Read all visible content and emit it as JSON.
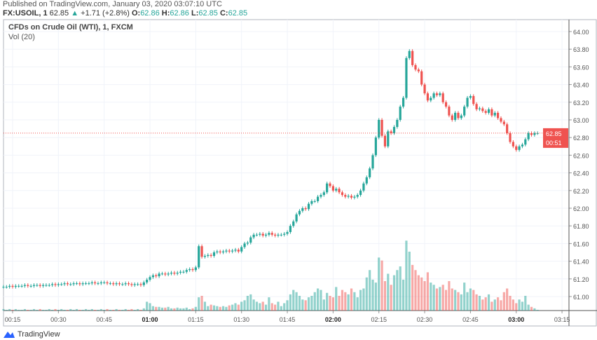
{
  "header": {
    "published": "Published on TradingView.com, January 03, 2020 03:07:10 UTC",
    "symbol": "FX:USOIL, 1",
    "last": "62.85",
    "change": "+1.71 (+2.8%)",
    "o_label": "O:",
    "o": "62.86",
    "h_label": "H:",
    "h": "62.86",
    "l_label": "L:",
    "l": "62.85",
    "c_label": "C:",
    "c": "62.85"
  },
  "legend": {
    "title": "CFDs on Crude Oil (WTI), 1, FXCM",
    "volume": "Vol (20)"
  },
  "price_label": {
    "price": "62.85",
    "countdown": "00:51"
  },
  "footer": {
    "brand": "TradingView"
  },
  "colors": {
    "up": "#26a69a",
    "down": "#ef5350",
    "grid": "#f0f3fa"
  },
  "chart_data": {
    "type": "candlestick",
    "interval": "1 minute",
    "start_time": "00:12",
    "y_ticks": [
      "61.00",
      "61.20",
      "61.40",
      "61.60",
      "61.80",
      "62.00",
      "62.20",
      "62.40",
      "62.60",
      "62.80",
      "63.00",
      "63.20",
      "63.40",
      "63.60",
      "63.80",
      "64.00"
    ],
    "x_ticks": [
      {
        "label": "00:15",
        "bold": false
      },
      {
        "label": "00:30",
        "bold": false
      },
      {
        "label": "00:45",
        "bold": false
      },
      {
        "label": "01:00",
        "bold": true
      },
      {
        "label": "01:15",
        "bold": false
      },
      {
        "label": "01:30",
        "bold": false
      },
      {
        "label": "01:45",
        "bold": false
      },
      {
        "label": "02:00",
        "bold": true
      },
      {
        "label": "02:15",
        "bold": false
      },
      {
        "label": "02:30",
        "bold": false
      },
      {
        "label": "02:45",
        "bold": false
      },
      {
        "label": "03:00",
        "bold": true
      },
      {
        "label": "03:15",
        "bold": false
      }
    ],
    "ylim": [
      60.87,
      64.13
    ],
    "first_open": 61.11,
    "closes": [
      61.11,
      61.11,
      61.12,
      61.11,
      61.12,
      61.12,
      61.12,
      61.13,
      61.12,
      61.12,
      61.13,
      61.13,
      61.12,
      61.13,
      61.13,
      61.13,
      61.14,
      61.13,
      61.14,
      61.14,
      61.15,
      61.14,
      61.14,
      61.15,
      61.15,
      61.14,
      61.15,
      61.15,
      61.15,
      61.16,
      61.15,
      61.15,
      61.16,
      61.16,
      61.15,
      61.15,
      61.14,
      61.15,
      61.14,
      61.14,
      61.15,
      61.14,
      61.13,
      61.14,
      61.14,
      61.13,
      61.16,
      61.19,
      61.22,
      61.24,
      61.23,
      61.26,
      61.26,
      61.25,
      61.26,
      61.27,
      61.26,
      61.27,
      61.28,
      61.28,
      61.3,
      61.31,
      61.3,
      61.33,
      61.57,
      61.45,
      61.46,
      61.47,
      61.46,
      61.5,
      61.51,
      61.5,
      61.51,
      61.52,
      61.51,
      61.52,
      61.53,
      61.51,
      61.56,
      61.6,
      61.61,
      61.67,
      61.7,
      61.7,
      61.71,
      61.69,
      61.7,
      61.72,
      61.7,
      61.69,
      61.7,
      61.7,
      61.71,
      61.73,
      61.8,
      61.85,
      61.93,
      61.97,
      62.0,
      61.99,
      62.05,
      62.08,
      62.08,
      62.13,
      62.15,
      62.18,
      62.28,
      62.25,
      62.2,
      62.22,
      62.18,
      62.15,
      62.13,
      62.14,
      62.12,
      62.13,
      62.15,
      62.2,
      62.28,
      62.35,
      62.45,
      62.6,
      62.8,
      63.0,
      62.82,
      62.7,
      62.87,
      62.85,
      62.92,
      63.0,
      63.15,
      63.25,
      63.7,
      63.78,
      63.62,
      63.57,
      63.55,
      63.4,
      63.3,
      63.22,
      63.25,
      63.3,
      63.28,
      63.3,
      63.2,
      63.15,
      63.05,
      63.0,
      63.08,
      63.02,
      63.05,
      63.15,
      63.25,
      63.27,
      63.18,
      63.12,
      63.13,
      63.1,
      63.08,
      63.12,
      63.05,
      63.08,
      63.02,
      62.98,
      62.95,
      62.85,
      62.75,
      62.7,
      62.66,
      62.7,
      62.72,
      62.78,
      62.85,
      62.83,
      62.85,
      62.85
    ],
    "volumes": [
      2,
      1,
      2,
      1,
      2,
      1,
      1,
      2,
      1,
      1,
      2,
      1,
      2,
      1,
      1,
      2,
      1,
      2,
      1,
      2,
      1,
      1,
      2,
      1,
      2,
      1,
      1,
      2,
      1,
      2,
      1,
      1,
      2,
      1,
      2,
      1,
      1,
      2,
      1,
      1,
      2,
      1,
      2,
      1,
      2,
      1,
      3,
      12,
      10,
      6,
      5,
      5,
      4,
      4,
      5,
      3,
      3,
      4,
      3,
      3,
      4,
      2,
      3,
      5,
      18,
      20,
      12,
      6,
      8,
      7,
      6,
      5,
      6,
      5,
      7,
      8,
      10,
      8,
      12,
      14,
      20,
      22,
      15,
      12,
      10,
      12,
      8,
      18,
      10,
      8,
      12,
      6,
      10,
      14,
      22,
      28,
      25,
      20,
      15,
      14,
      18,
      20,
      25,
      30,
      28,
      15,
      24,
      20,
      18,
      32,
      20,
      28,
      25,
      22,
      30,
      25,
      18,
      28,
      30,
      45,
      55,
      42,
      38,
      72,
      68,
      40,
      50,
      35,
      48,
      55,
      60,
      42,
      95,
      80,
      62,
      55,
      48,
      45,
      40,
      52,
      38,
      35,
      30,
      32,
      35,
      28,
      40,
      30,
      28,
      25,
      22,
      38,
      25,
      30,
      28,
      22,
      20,
      15,
      18,
      22,
      12,
      15,
      18,
      14,
      25,
      30,
      20,
      15,
      10,
      15,
      12,
      20,
      8,
      5,
      3,
      1
    ]
  }
}
